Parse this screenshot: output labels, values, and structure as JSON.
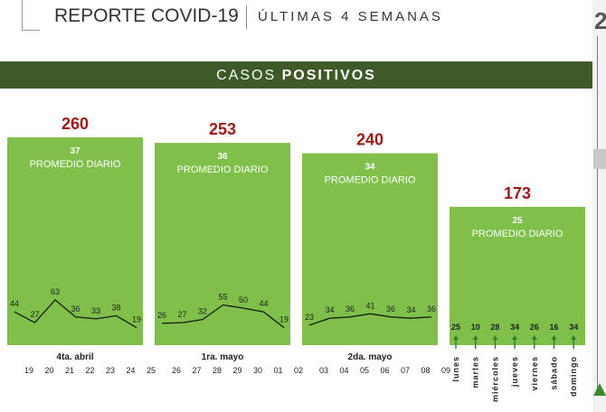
{
  "header": {
    "title": "REPORTE COVID-19",
    "subtitle": "ÚLTIMAS 4 SEMANAS",
    "right_glyph": "2"
  },
  "band": {
    "prefix": "CASOS ",
    "bold": "POSITIVOS"
  },
  "colors": {
    "bar": "#7ec04a",
    "total": "#a01818",
    "band": "#3d5a27",
    "line": "#1a1a1a",
    "arrow": "#2e7d2a"
  },
  "chart_data": {
    "type": "bar",
    "title": "CASOS POSITIVOS",
    "categories": [
      "4ta. abril",
      "1ra. mayo",
      "2da. mayo",
      ""
    ],
    "values": [
      260,
      253,
      240,
      173
    ],
    "averages": [
      37,
      36,
      34,
      25
    ],
    "average_label": "PROMEDIO DIARIO",
    "daily_series": [
      {
        "days": [
          "19",
          "20",
          "21",
          "22",
          "23",
          "24",
          "25"
        ],
        "values": [
          44,
          27,
          63,
          36,
          33,
          38,
          19
        ]
      },
      {
        "days": [
          "26",
          "27",
          "28",
          "29",
          "30",
          "01",
          "02"
        ],
        "values": [
          26,
          27,
          32,
          55,
          50,
          44,
          19
        ]
      },
      {
        "days": [
          "03",
          "04",
          "05",
          "06",
          "07",
          "08",
          "09"
        ],
        "values": [
          23,
          34,
          36,
          41,
          36,
          34,
          36
        ]
      },
      {
        "days": [
          "lunes",
          "martes",
          "miércoles",
          "jueves",
          "viernes",
          "sábado",
          "domingo"
        ],
        "values": [
          25,
          10,
          28,
          34,
          26,
          16,
          34
        ]
      }
    ],
    "ylim": [
      0,
      300
    ],
    "grid": false
  }
}
